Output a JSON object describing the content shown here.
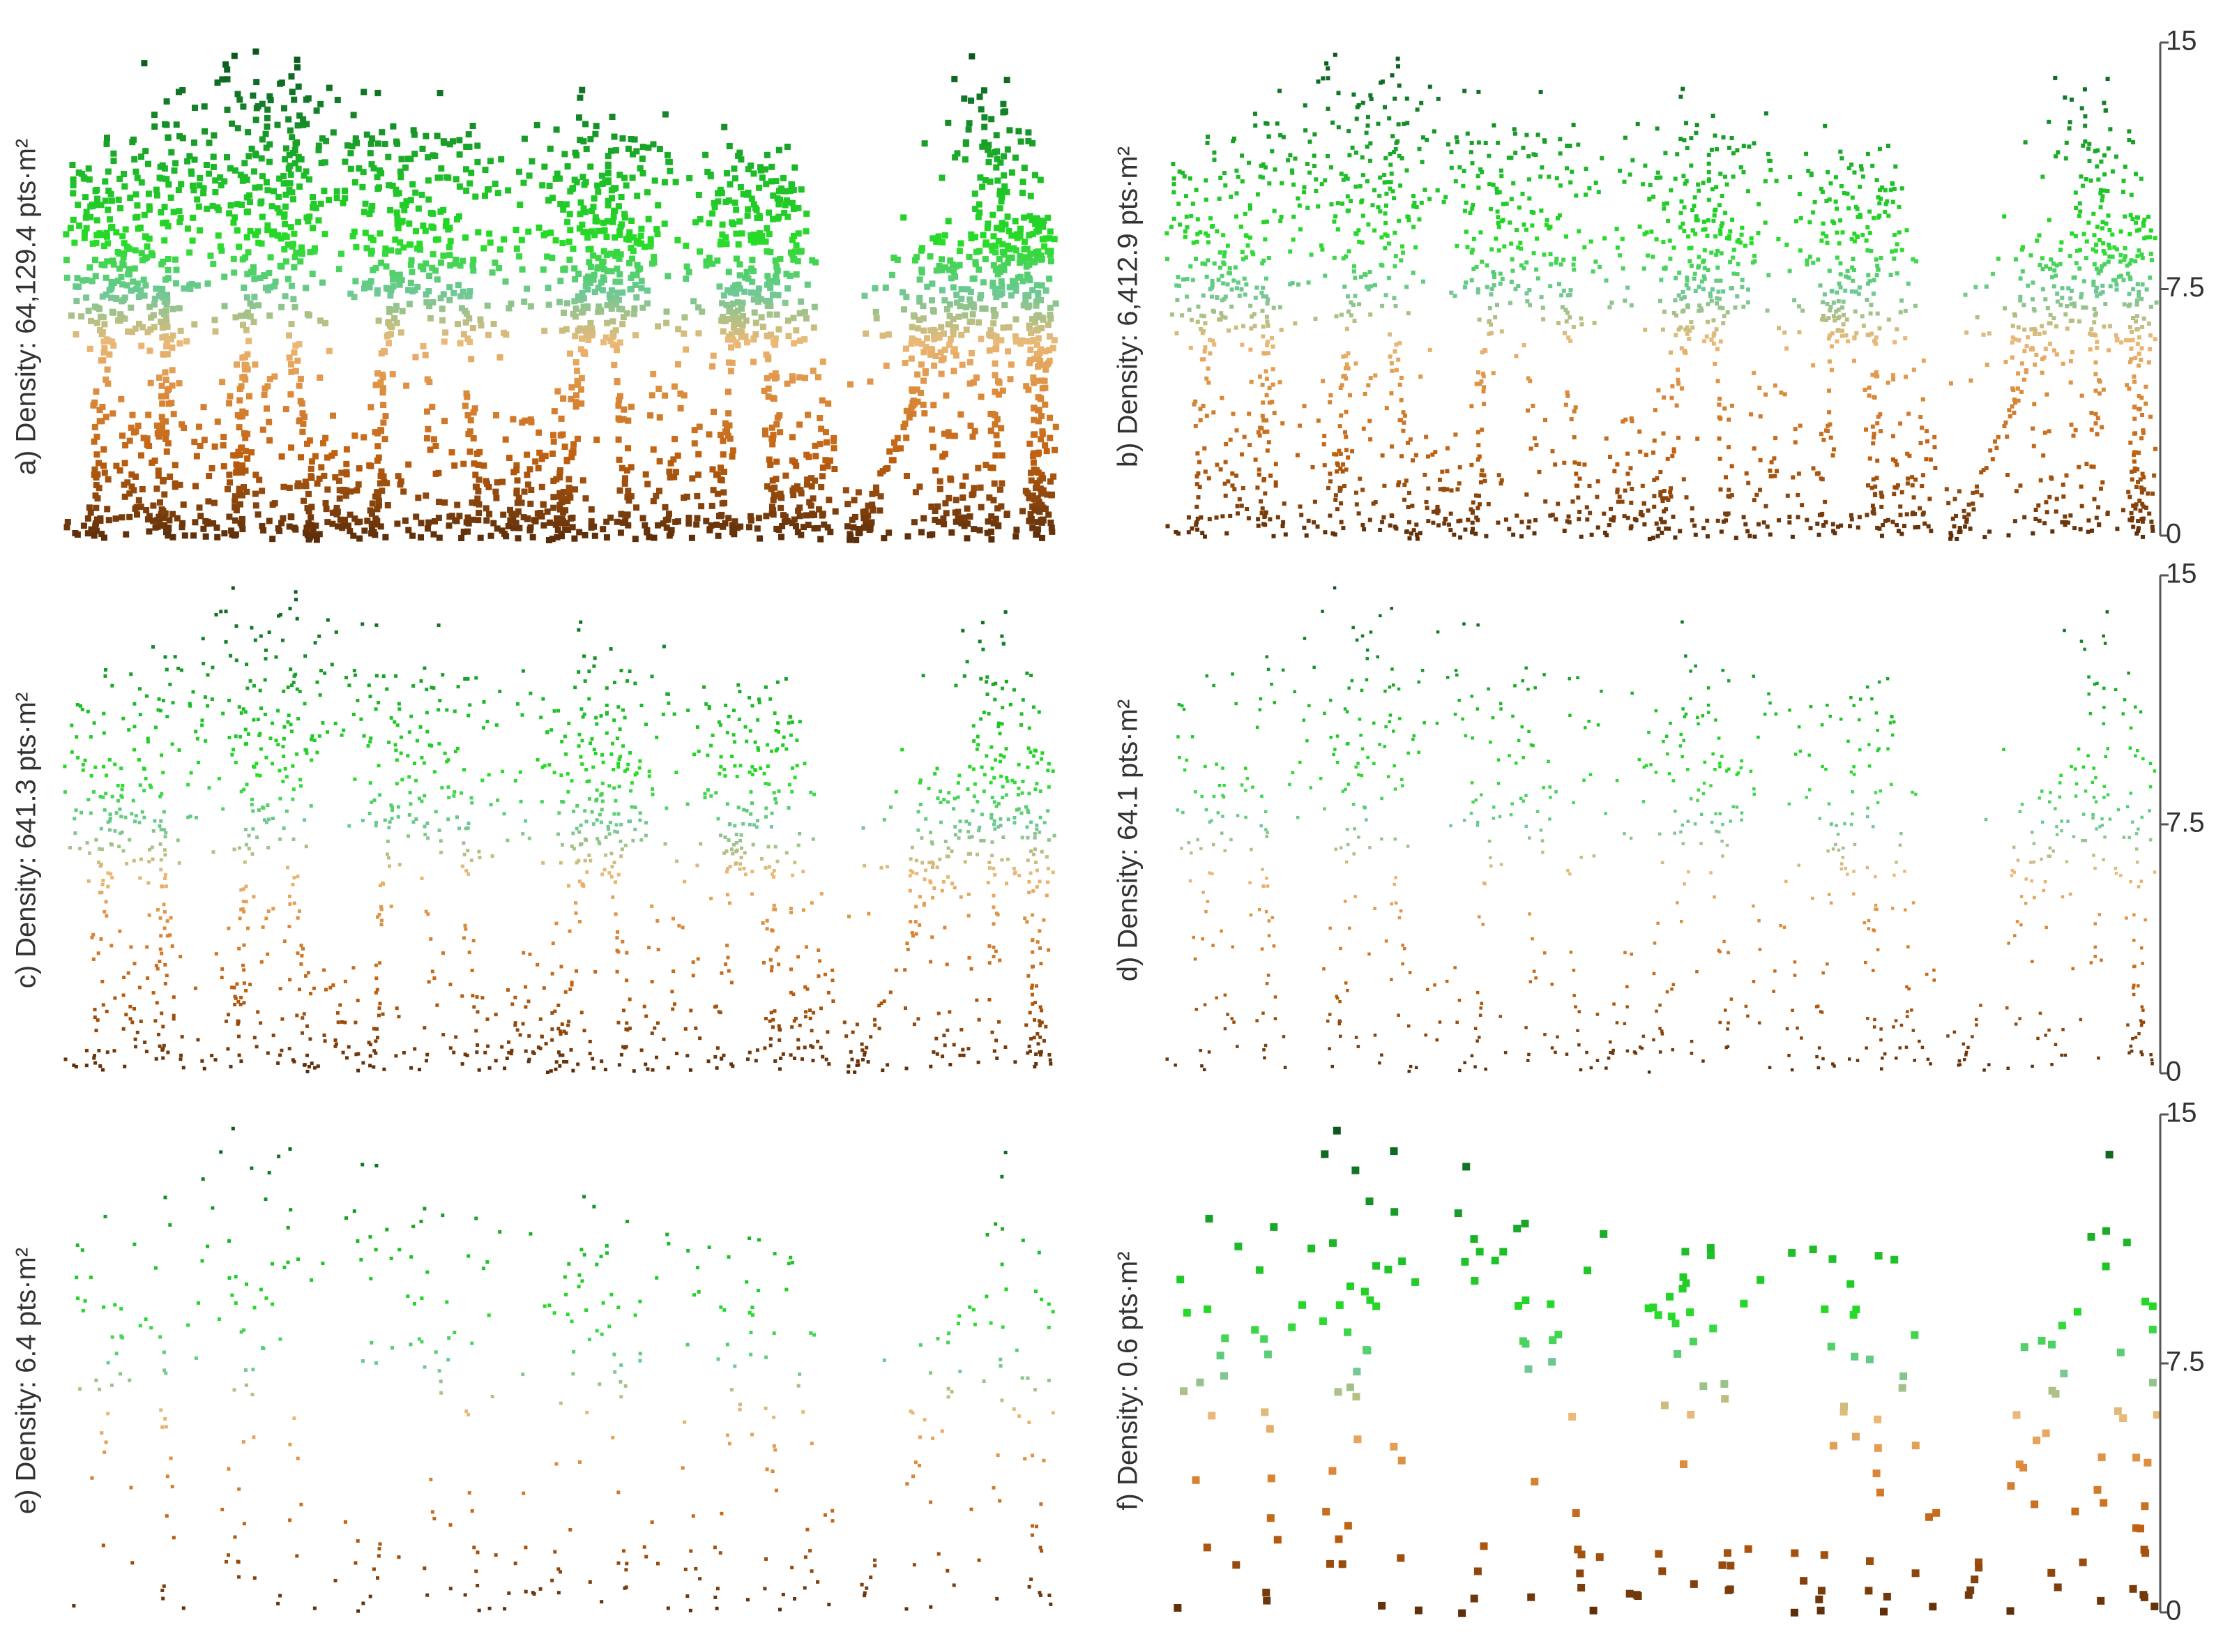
{
  "panels": [
    {
      "label": "a) Density: 64,129.4 pts·m²"
    },
    {
      "label": "b) Density: 6,412.9 pts·m²"
    },
    {
      "label": "c) Density: 641.3 pts·m²"
    },
    {
      "label": "d) Density: 64.1 pts·m²"
    },
    {
      "label": "e) Density: 6.4 pts·m²"
    },
    {
      "label": "f) Density: 0.6 pts·m²"
    }
  ],
  "scale_bars": [
    {
      "ticks": [
        15,
        7.5,
        0
      ]
    },
    {
      "ticks": [
        15,
        7.5,
        0
      ]
    },
    {
      "ticks": [
        15,
        7.5,
        0
      ]
    }
  ]
}
